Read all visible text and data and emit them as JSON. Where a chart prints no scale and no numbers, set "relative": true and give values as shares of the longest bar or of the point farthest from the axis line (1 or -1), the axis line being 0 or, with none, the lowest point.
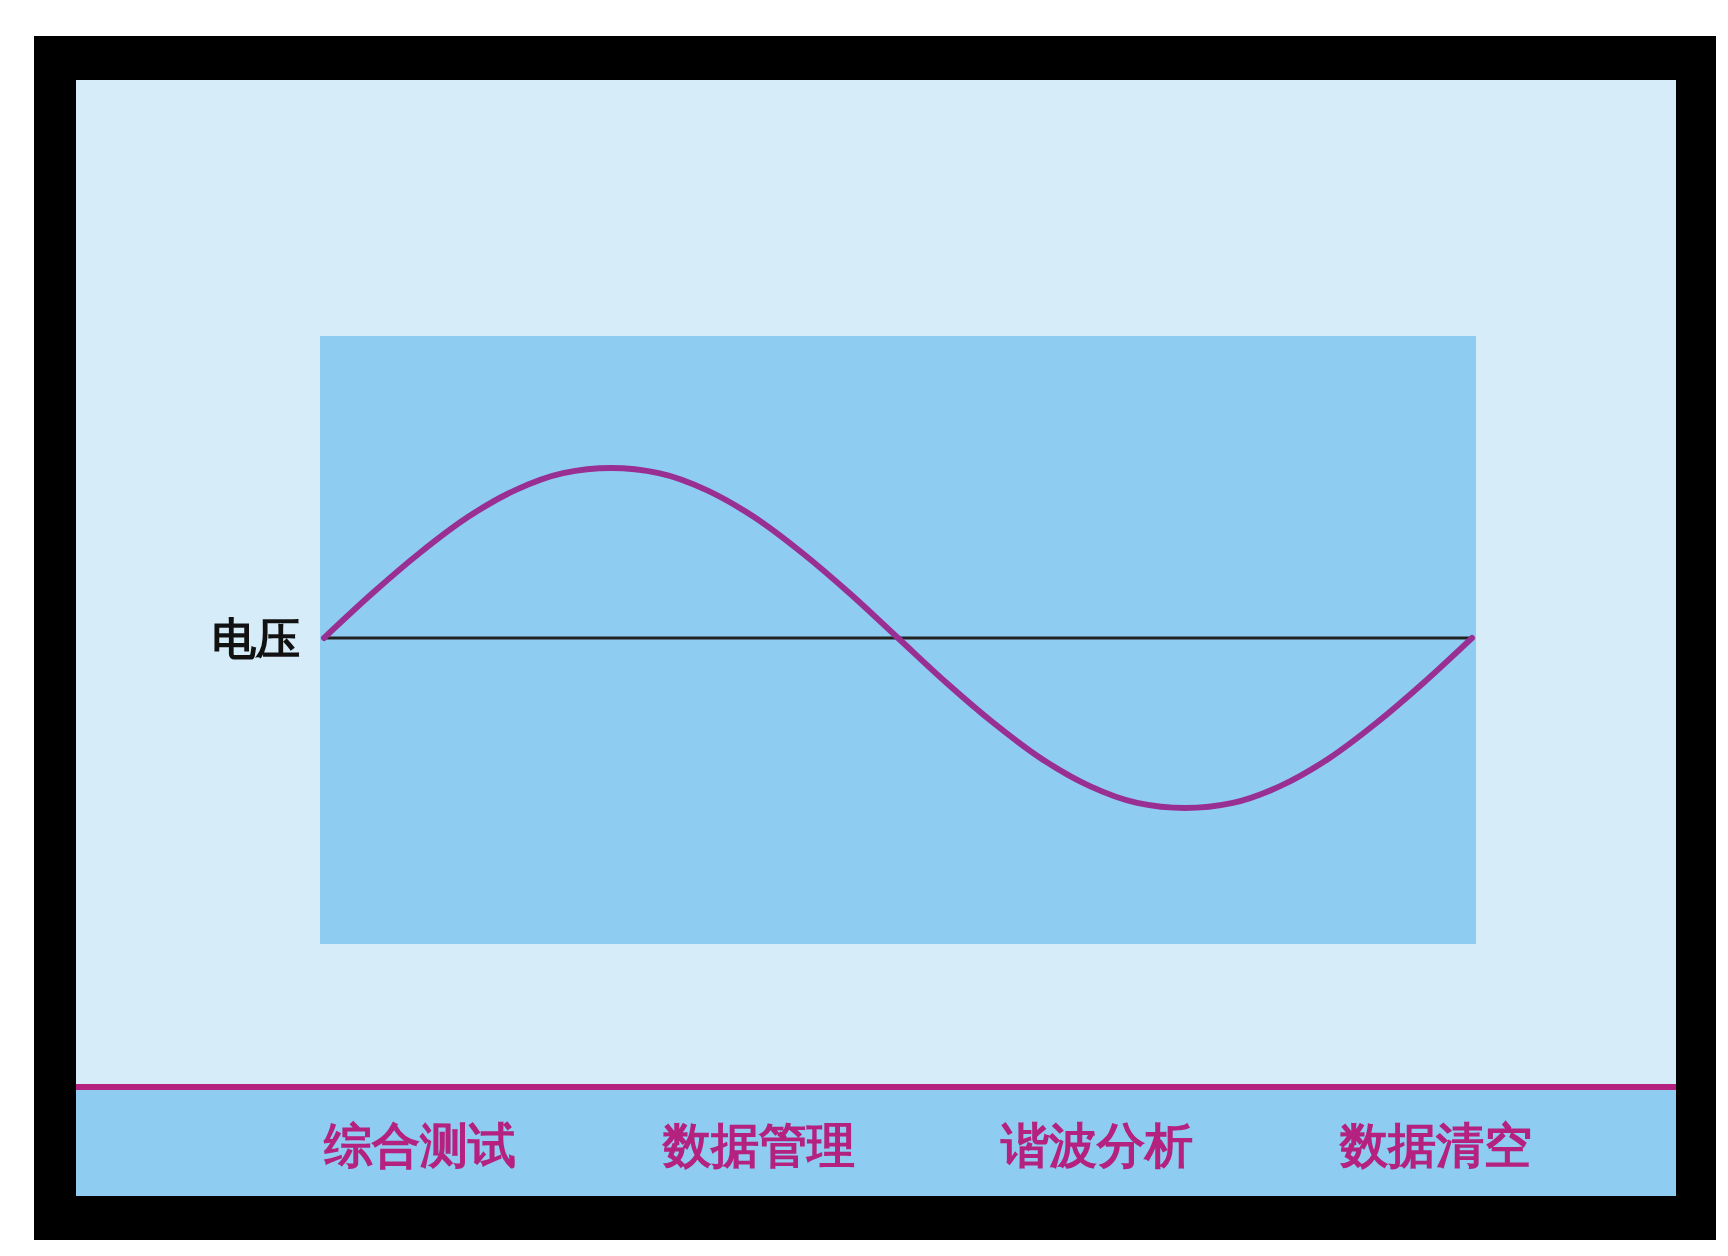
{
  "chart_data": {
    "type": "line",
    "relative": true,
    "ylabel": "电压",
    "marker": "none",
    "line_style": "solid",
    "categories": [
      null,
      null,
      null,
      null,
      null,
      null,
      null,
      null,
      null,
      null,
      null,
      null,
      null,
      null,
      null,
      null,
      null,
      null,
      null,
      null,
      null,
      null,
      null,
      null,
      null
    ],
    "series": [
      {
        "color": "#9a2f93",
        "values": [
          0,
          0.26,
          0.5,
          0.71,
          0.87,
          0.97,
          1,
          0.97,
          0.87,
          0.71,
          0.5,
          0.26,
          0,
          -0.26,
          -0.5,
          -0.71,
          -0.87,
          -0.97,
          -1,
          -0.97,
          -0.87,
          -0.71,
          -0.5,
          -0.26,
          0
        ]
      }
    ],
    "annotations": [
      "综合测试",
      "数据管理",
      "谐波分析",
      "数据清空"
    ]
  }
}
